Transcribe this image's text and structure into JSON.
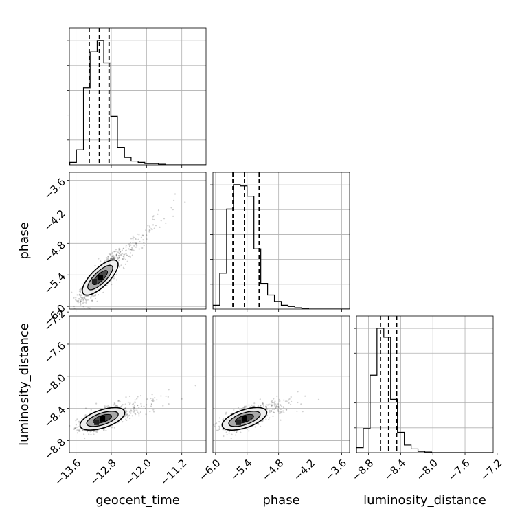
{
  "chart_data": {
    "type": "corner",
    "parameters": [
      "geocent_time",
      "phase",
      "luminosity_distance"
    ],
    "ranges": {
      "geocent_time": [
        -13.75,
        -10.65
      ],
      "phase": [
        -6.05,
        -3.45
      ],
      "luminosity_distance": [
        -8.95,
        -7.25
      ]
    },
    "ticks": {
      "geocent_time": {
        "values": [
          -13.6,
          -12.8,
          -12.0,
          -11.2
        ],
        "labels": [
          "−13.6",
          "−12.8",
          "−12.0",
          "−11.2"
        ]
      },
      "phase": {
        "values": [
          -6.0,
          -5.4,
          -4.8,
          -4.2,
          -3.6
        ],
        "labels": [
          "−6.0",
          "−5.4",
          "−4.8",
          "−4.2",
          "−3.6"
        ]
      },
      "luminosity_distance": {
        "values": [
          -8.8,
          -8.4,
          -8.0,
          -7.6,
          -7.2
        ],
        "labels": [
          "−8.8",
          "−8.4",
          "−8.0",
          "−7.6",
          "−7.2"
        ]
      }
    },
    "quantiles": {
      "geocent_time": [
        -13.3,
        -13.07,
        -12.85
      ],
      "phase": [
        -5.67,
        -5.45,
        -5.17
      ],
      "luminosity_distance": [
        -8.65,
        -8.55,
        -8.45
      ]
    },
    "histograms": {
      "geocent_time": {
        "bins": [
          -13.74,
          -13.59,
          -13.43,
          -13.28,
          -13.12,
          -12.97,
          -12.81,
          -12.66,
          -12.5,
          -12.35,
          -12.19,
          -12.04,
          -11.88,
          -11.73,
          -11.57,
          -11.42,
          -11.26,
          -11.11,
          -10.95,
          -10.8,
          -10.65
        ],
        "counts": [
          0.02,
          0.12,
          0.62,
          0.91,
          1.0,
          0.82,
          0.39,
          0.14,
          0.06,
          0.03,
          0.02,
          0.01,
          0.01,
          0.005,
          0,
          0,
          0,
          0,
          0,
          0
        ]
      },
      "phase": {
        "bins": [
          -6.05,
          -5.92,
          -5.79,
          -5.66,
          -5.53,
          -5.4,
          -5.27,
          -5.14,
          -5.01,
          -4.88,
          -4.75,
          -4.62,
          -4.49,
          -4.36,
          -4.23,
          -4.1,
          -3.97,
          -3.84,
          -3.71,
          -3.58,
          -3.45
        ],
        "counts": [
          0.03,
          0.28,
          0.78,
          0.97,
          0.96,
          0.88,
          0.47,
          0.2,
          0.11,
          0.06,
          0.03,
          0.02,
          0.01,
          0.005,
          0,
          0,
          0,
          0,
          0,
          0
        ]
      },
      "luminosity_distance": {
        "bins": [
          -8.95,
          -8.865,
          -8.78,
          -8.695,
          -8.61,
          -8.525,
          -8.44,
          -8.355,
          -8.27,
          -8.185,
          -8.1,
          -8.015,
          -7.93,
          -7.845,
          -7.76,
          -7.675,
          -7.59,
          -7.505,
          -7.42,
          -7.335,
          -7.25
        ],
        "counts": [
          0.04,
          0.19,
          0.61,
          0.98,
          0.91,
          0.42,
          0.16,
          0.06,
          0.03,
          0.01,
          0.005,
          0,
          0,
          0,
          0,
          0,
          0,
          0,
          0,
          0
        ]
      }
    },
    "scatter_pairs": [
      {
        "x": "geocent_time",
        "y": "phase",
        "center": [
          -13.05,
          -5.45
        ],
        "slope": 0.82,
        "spread": 0.12,
        "tail": 0.25
      },
      {
        "x": "geocent_time",
        "y": "luminosity_distance",
        "center": [
          -13.0,
          -8.53
        ],
        "slope": 0.18,
        "spread": 0.06,
        "tail": 0.2
      },
      {
        "x": "phase",
        "y": "luminosity_distance",
        "center": [
          -5.45,
          -8.53
        ],
        "slope": 0.22,
        "spread": 0.06,
        "tail": 0.2
      }
    ],
    "grid": true
  }
}
